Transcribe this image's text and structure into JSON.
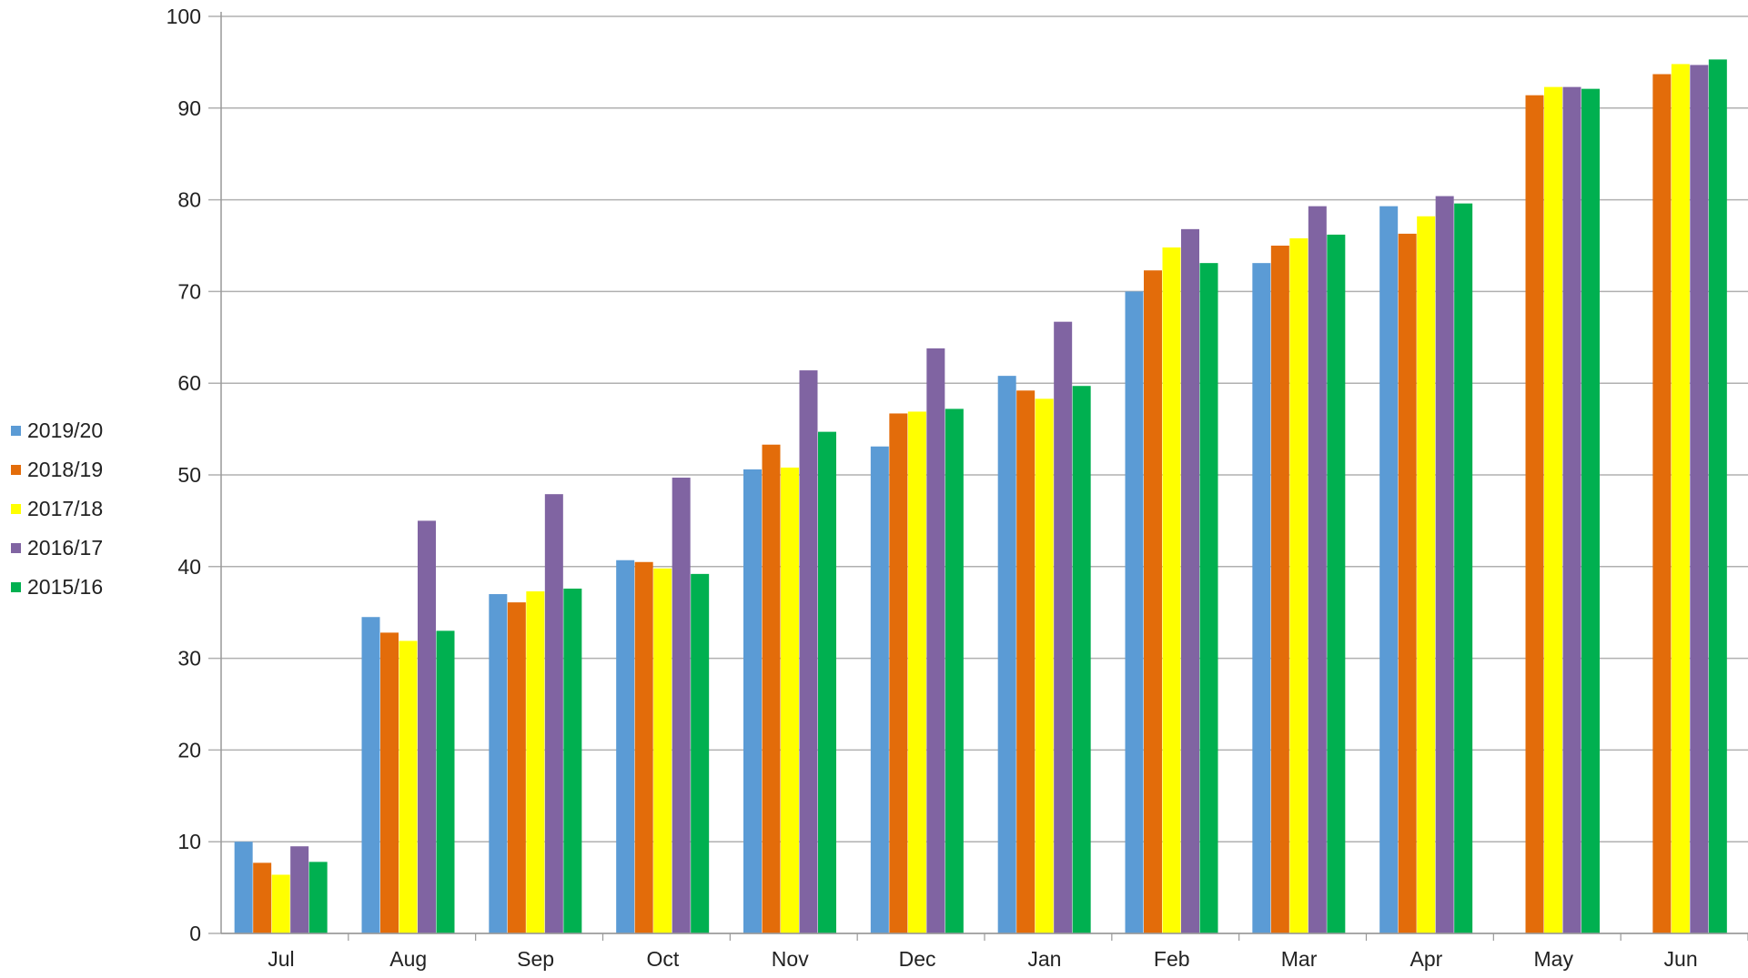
{
  "chart_data": {
    "type": "bar",
    "categories": [
      "Jul",
      "Aug",
      "Sep",
      "Oct",
      "Nov",
      "Dec",
      "Jan",
      "Feb",
      "Mar",
      "Apr",
      "May",
      "Jun"
    ],
    "series": [
      {
        "name": "2019/20",
        "color": "#5B9BD5",
        "values": [
          10,
          34.5,
          37,
          40.7,
          50.6,
          53.1,
          60.8,
          70,
          73.1,
          79.3,
          null,
          null
        ]
      },
      {
        "name": "2018/19",
        "color": "#E36C0A",
        "values": [
          7.7,
          32.8,
          36.1,
          40.5,
          53.3,
          56.7,
          59.2,
          72.3,
          75,
          76.3,
          91.4,
          93.7
        ]
      },
      {
        "name": "2017/18",
        "color": "#FFFF00",
        "values": [
          6.4,
          31.9,
          37.3,
          39.8,
          50.8,
          56.9,
          58.3,
          74.8,
          75.8,
          78.2,
          92.3,
          94.8
        ]
      },
      {
        "name": "2016/17",
        "color": "#8064A2",
        "values": [
          9.5,
          45,
          47.9,
          49.7,
          61.4,
          63.8,
          66.7,
          76.8,
          79.3,
          80.4,
          92.3,
          94.7
        ]
      },
      {
        "name": "2015/16",
        "color": "#00B050",
        "values": [
          7.8,
          33,
          37.6,
          39.2,
          54.7,
          57.2,
          59.7,
          73.1,
          76.2,
          79.6,
          92.1,
          95.3
        ]
      }
    ],
    "ylim": [
      0,
      100
    ],
    "yticks": [
      "0",
      "10",
      "20",
      "30",
      "40",
      "50",
      "60",
      "70",
      "80",
      "90",
      "100"
    ],
    "grid": true,
    "legend_position": "left"
  }
}
